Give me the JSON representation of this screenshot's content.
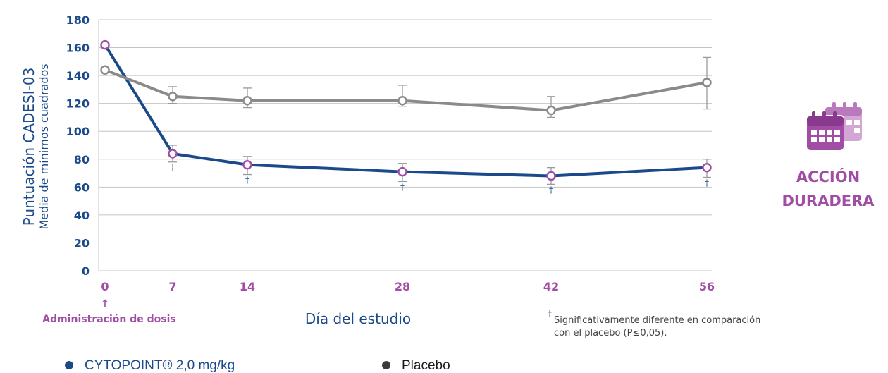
{
  "colors": {
    "cytopoint": "#1b4a8a",
    "placebo": "#8a8a8a",
    "accent": "#a14da5",
    "marker_fill": "#ffffff",
    "grid": "#c4c4c4",
    "axis_text": "#1b4a8a",
    "tick_text": "#a14da5"
  },
  "chart_data": {
    "type": "line",
    "title": "",
    "ylabel": "Puntuación CADESI-03",
    "ylabel_sub": "Media de mínimos cuadrados",
    "xlabel": "Día del estudio",
    "x": [
      0,
      7,
      14,
      28,
      42,
      56
    ],
    "x_tick_labels": [
      "0",
      "7",
      "14",
      "28",
      "42",
      "56"
    ],
    "ylim": [
      0,
      180
    ],
    "yticks": [
      0,
      20,
      40,
      60,
      80,
      100,
      120,
      140,
      160,
      180
    ],
    "grid": true,
    "x_scale": "categorical-spaced",
    "series": [
      {
        "name": "CYTOPOINT® 2,0 mg/kg",
        "key": "cytopoint",
        "values": [
          162,
          84,
          76,
          71,
          68,
          74
        ],
        "error_low": [
          null,
          78,
          69,
          64,
          62,
          67
        ],
        "error_high": [
          null,
          90,
          82,
          77,
          74,
          80
        ],
        "significant": [
          false,
          true,
          true,
          true,
          true,
          true
        ]
      },
      {
        "name": "Placebo",
        "key": "placebo",
        "values": [
          144,
          125,
          122,
          122,
          115,
          135
        ],
        "error_low": [
          null,
          120,
          117,
          118,
          110,
          116
        ],
        "error_high": [
          null,
          132,
          131,
          133,
          125,
          153
        ],
        "significant": [
          false,
          false,
          false,
          false,
          false,
          false
        ]
      }
    ],
    "annotations": {
      "dose_arrow": "↑",
      "dose_label": "Administración de dosis",
      "significance_marker": "†",
      "footnote_line1": "Significativamente diferente en comparación",
      "footnote_line2": "con el placebo (P≤0,05)."
    },
    "legend": {
      "placement": "bottom-left",
      "items": [
        {
          "label": "CYTOPOINT® 2,0 mg/kg",
          "color_key": "cytopoint"
        },
        {
          "label": "Placebo",
          "color_key": "placebo"
        }
      ]
    }
  },
  "badge": {
    "icon": "calendar-icon",
    "line1": "ACCIÓN",
    "line2": "DURADERA"
  }
}
